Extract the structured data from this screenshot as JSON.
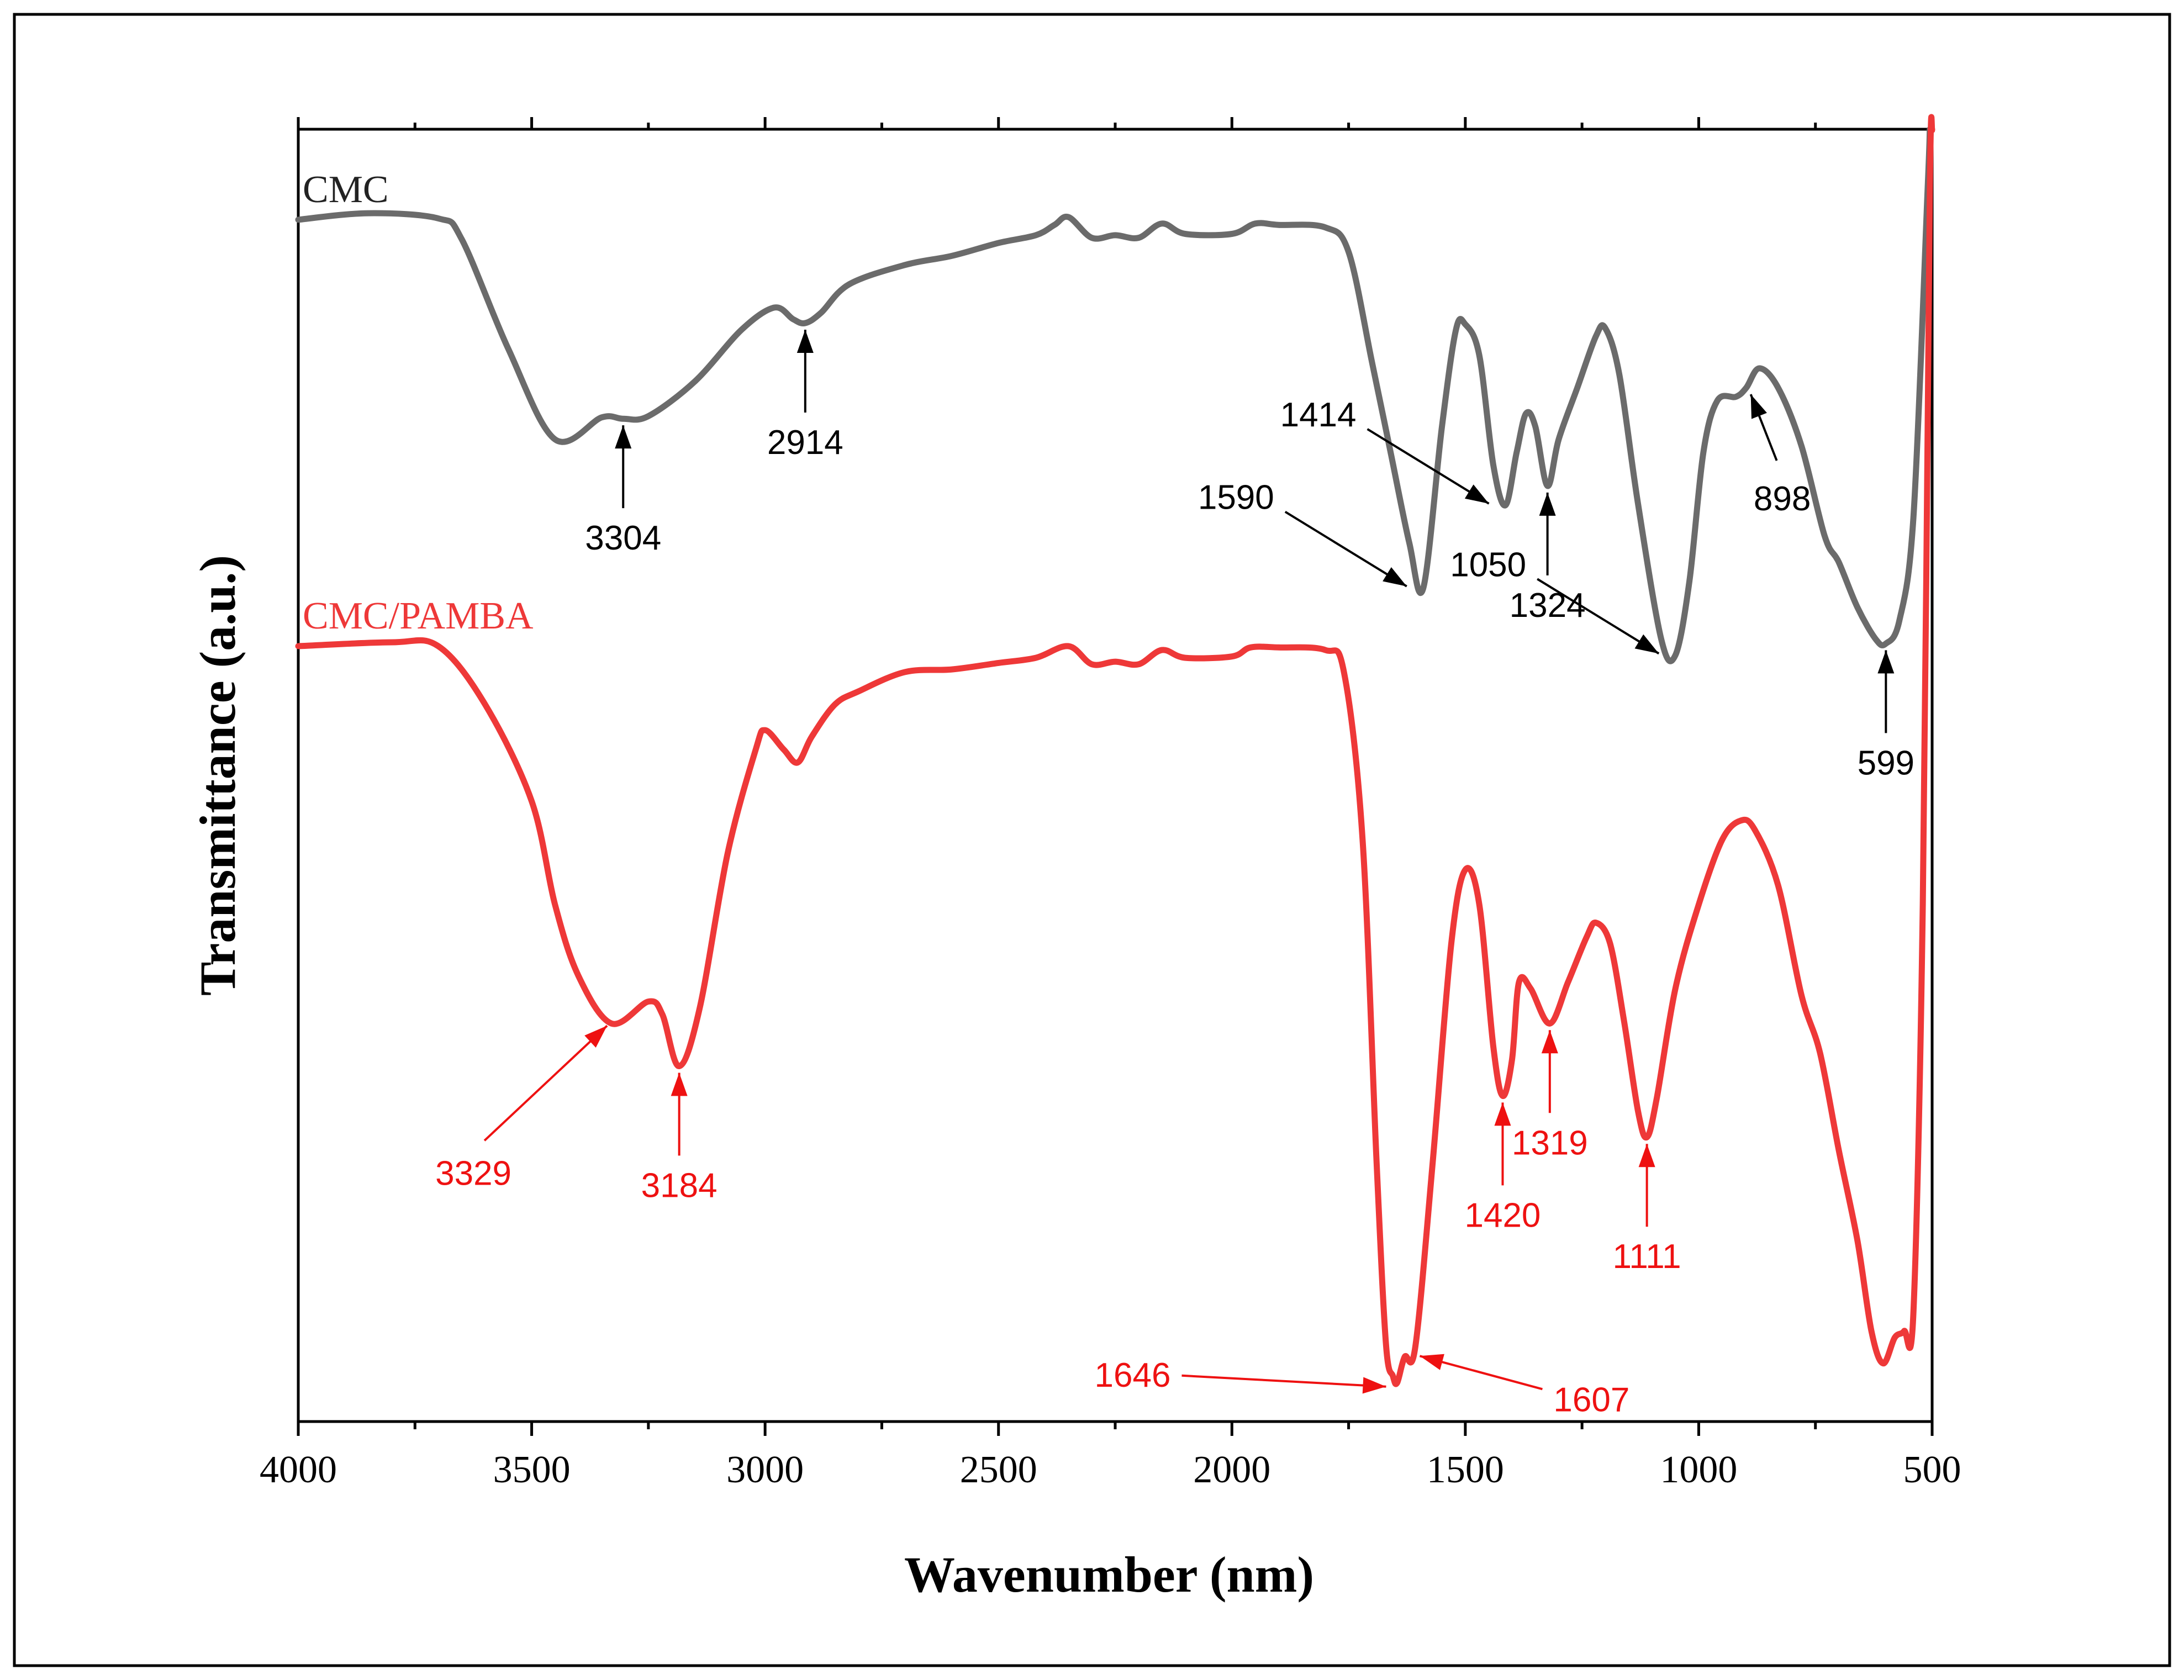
{
  "chart_data": {
    "type": "line",
    "title": "",
    "xlabel": "Wavenumber (nm)",
    "ylabel": "Transmittance (a.u.)",
    "xlim": [
      4000,
      500
    ],
    "ylim": [
      0,
      100
    ],
    "x_ticks": [
      4000,
      3500,
      3000,
      2500,
      2000,
      1500,
      1000,
      500
    ],
    "x_tick_labels": [
      "4000",
      "3500",
      "3000",
      "2500",
      "2000",
      "1500",
      "1000",
      "500"
    ],
    "grid": false,
    "series": [
      {
        "name": "CMC",
        "color": "#6b6b6b",
        "points": [
          [
            4000,
            93.0
          ],
          [
            3850,
            93.5
          ],
          [
            3700,
            93.1
          ],
          [
            3650,
            91.5
          ],
          [
            3550,
            83.0
          ],
          [
            3450,
            76.0
          ],
          [
            3350,
            77.7
          ],
          [
            3304,
            77.6
          ],
          [
            3250,
            77.8
          ],
          [
            3150,
            80.5
          ],
          [
            3050,
            84.5
          ],
          [
            2980,
            86.2
          ],
          [
            2940,
            85.3
          ],
          [
            2914,
            85.0
          ],
          [
            2880,
            85.8
          ],
          [
            2820,
            88.0
          ],
          [
            2700,
            89.5
          ],
          [
            2600,
            90.2
          ],
          [
            2500,
            91.2
          ],
          [
            2420,
            91.8
          ],
          [
            2380,
            92.6
          ],
          [
            2350,
            93.2
          ],
          [
            2300,
            91.6
          ],
          [
            2250,
            91.8
          ],
          [
            2200,
            91.6
          ],
          [
            2150,
            92.7
          ],
          [
            2100,
            91.9
          ],
          [
            2000,
            91.9
          ],
          [
            1950,
            92.7
          ],
          [
            1900,
            92.6
          ],
          [
            1800,
            92.4
          ],
          [
            1750,
            90.5
          ],
          [
            1700,
            82.0
          ],
          [
            1660,
            75.0
          ],
          [
            1620,
            68.0
          ],
          [
            1590,
            64.5
          ],
          [
            1550,
            77.0
          ],
          [
            1520,
            84.5
          ],
          [
            1500,
            84.9
          ],
          [
            1470,
            82.5
          ],
          [
            1440,
            74.0
          ],
          [
            1414,
            70.9
          ],
          [
            1390,
            75.0
          ],
          [
            1370,
            78.0
          ],
          [
            1350,
            77.0
          ],
          [
            1324,
            72.4
          ],
          [
            1300,
            76.0
          ],
          [
            1260,
            80.0
          ],
          [
            1220,
            84.0
          ],
          [
            1200,
            84.6
          ],
          [
            1170,
            81.0
          ],
          [
            1130,
            71.0
          ],
          [
            1080,
            60.5
          ],
          [
            1050,
            59.3
          ],
          [
            1020,
            65.0
          ],
          [
            990,
            75.0
          ],
          [
            960,
            79.0
          ],
          [
            920,
            79.3
          ],
          [
            898,
            80.0
          ],
          [
            870,
            81.5
          ],
          [
            830,
            80.0
          ],
          [
            780,
            75.5
          ],
          [
            730,
            68.5
          ],
          [
            700,
            66.5
          ],
          [
            660,
            63.0
          ],
          [
            620,
            60.5
          ],
          [
            599,
            60.2
          ],
          [
            570,
            62.0
          ],
          [
            540,
            70.0
          ],
          [
            510,
            95.0
          ],
          [
            505,
            100.0
          ]
        ]
      },
      {
        "name": "CMC/PAMBA",
        "color": "#ee3838",
        "points": [
          [
            4000,
            60.0
          ],
          [
            3800,
            60.3
          ],
          [
            3700,
            60.0
          ],
          [
            3600,
            55.5
          ],
          [
            3500,
            48.0
          ],
          [
            3450,
            40.0
          ],
          [
            3400,
            34.5
          ],
          [
            3329,
            30.8
          ],
          [
            3250,
            32.5
          ],
          [
            3220,
            31.5
          ],
          [
            3184,
            27.5
          ],
          [
            3140,
            32.0
          ],
          [
            3080,
            44.0
          ],
          [
            3020,
            52.0
          ],
          [
            3000,
            53.5
          ],
          [
            2960,
            52.0
          ],
          [
            2930,
            51.0
          ],
          [
            2900,
            53.0
          ],
          [
            2850,
            55.5
          ],
          [
            2800,
            56.5
          ],
          [
            2700,
            58.0
          ],
          [
            2600,
            58.2
          ],
          [
            2500,
            58.7
          ],
          [
            2420,
            59.1
          ],
          [
            2350,
            60.0
          ],
          [
            2300,
            58.6
          ],
          [
            2250,
            58.8
          ],
          [
            2200,
            58.6
          ],
          [
            2150,
            59.7
          ],
          [
            2100,
            59.1
          ],
          [
            2000,
            59.2
          ],
          [
            1960,
            59.9
          ],
          [
            1900,
            59.9
          ],
          [
            1800,
            59.7
          ],
          [
            1760,
            58.0
          ],
          [
            1720,
            45.0
          ],
          [
            1690,
            20.0
          ],
          [
            1670,
            6.0
          ],
          [
            1655,
            3.5
          ],
          [
            1646,
            3.0
          ],
          [
            1630,
            5.0
          ],
          [
            1607,
            5.8
          ],
          [
            1570,
            20.0
          ],
          [
            1530,
            37.0
          ],
          [
            1500,
            42.7
          ],
          [
            1470,
            40.0
          ],
          [
            1440,
            29.0
          ],
          [
            1420,
            25.2
          ],
          [
            1400,
            28.0
          ],
          [
            1385,
            34.0
          ],
          [
            1360,
            33.5
          ],
          [
            1319,
            30.8
          ],
          [
            1280,
            34.0
          ],
          [
            1240,
            37.5
          ],
          [
            1220,
            38.6
          ],
          [
            1190,
            37.0
          ],
          [
            1160,
            31.0
          ],
          [
            1130,
            24.0
          ],
          [
            1111,
            22.0
          ],
          [
            1090,
            25.0
          ],
          [
            1050,
            33.5
          ],
          [
            1000,
            40.0
          ],
          [
            950,
            45.0
          ],
          [
            910,
            46.5
          ],
          [
            880,
            45.8
          ],
          [
            830,
            41.5
          ],
          [
            780,
            33.0
          ],
          [
            740,
            28.5
          ],
          [
            700,
            21.0
          ],
          [
            660,
            14.0
          ],
          [
            630,
            7.0
          ],
          [
            605,
            4.5
          ],
          [
            580,
            6.5
          ],
          [
            560,
            7.0
          ],
          [
            540,
            8.5
          ],
          [
            520,
            40.0
          ],
          [
            505,
            95.0
          ],
          [
            500,
            100.0
          ]
        ]
      }
    ],
    "annotations": [
      {
        "label": "3304",
        "series": "CMC",
        "x": 3304,
        "dir": "up"
      },
      {
        "label": "2914",
        "series": "CMC",
        "x": 2914,
        "dir": "up"
      },
      {
        "label": "1414",
        "series": "CMC",
        "x": 1414,
        "dir": "from-upper-left"
      },
      {
        "label": "1324",
        "series": "CMC",
        "x": 1324,
        "dir": "up"
      },
      {
        "label": "1590",
        "series": "CMC",
        "x": 1590,
        "dir": "from-upper-left"
      },
      {
        "label": "898",
        "series": "CMC",
        "x": 898,
        "dir": "from-below"
      },
      {
        "label": "1050",
        "series": "CMC",
        "x": 1050,
        "dir": "from-upper-left"
      },
      {
        "label": "599",
        "series": "CMC",
        "x": 599,
        "dir": "up"
      },
      {
        "label": "3329",
        "series": "CMC/PAMBA",
        "x": 3329,
        "dir": "from-lower-left"
      },
      {
        "label": "3184",
        "series": "CMC/PAMBA",
        "x": 3184,
        "dir": "up"
      },
      {
        "label": "1420",
        "series": "CMC/PAMBA",
        "x": 1420,
        "dir": "up"
      },
      {
        "label": "1319",
        "series": "CMC/PAMBA",
        "x": 1319,
        "dir": "up"
      },
      {
        "label": "1111",
        "series": "CMC/PAMBA",
        "x": 1111,
        "dir": "up"
      },
      {
        "label": "1646",
        "series": "CMC/PAMBA",
        "x": 1646,
        "dir": "from-left"
      },
      {
        "label": "1607",
        "series": "CMC/PAMBA",
        "x": 1607,
        "dir": "from-right"
      }
    ]
  }
}
